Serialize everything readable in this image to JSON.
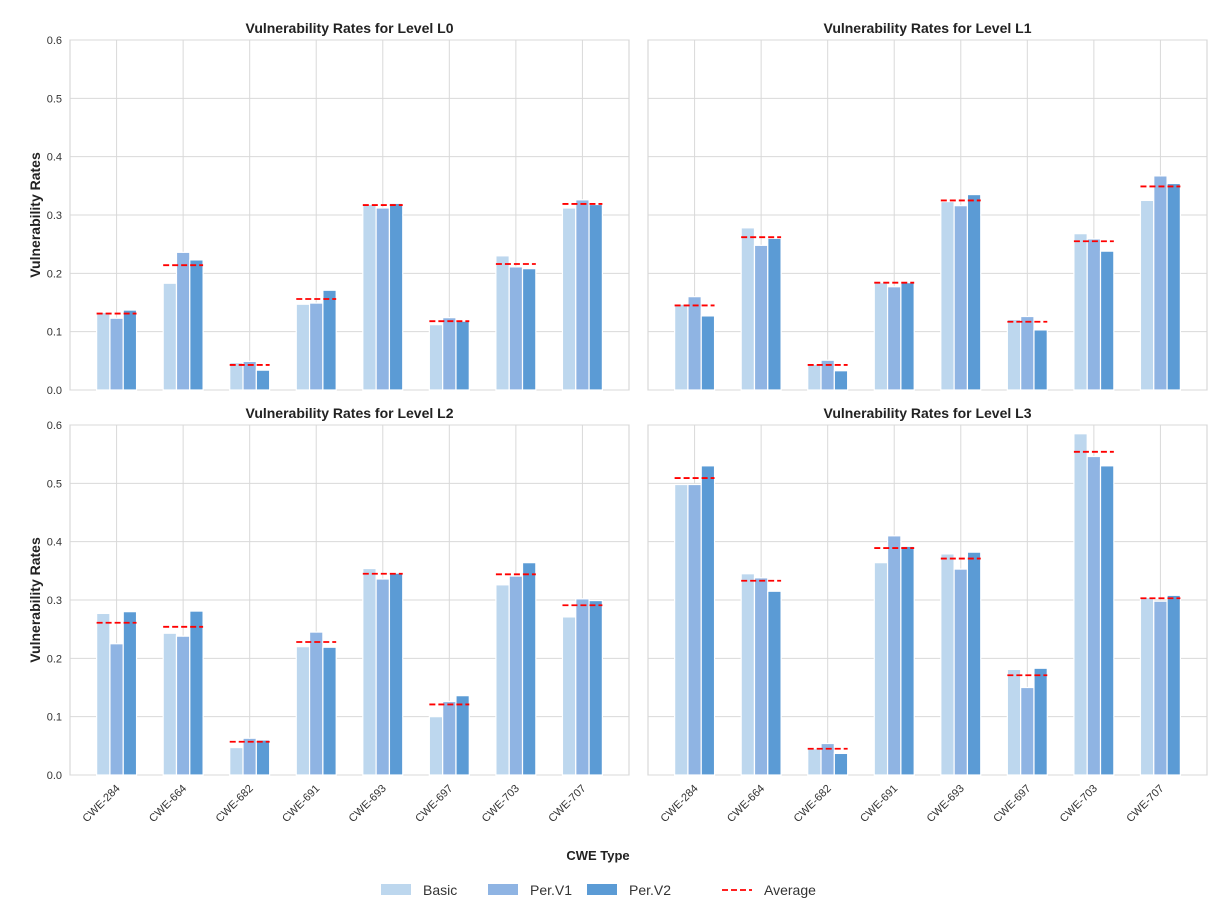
{
  "chart_data": {
    "type": "bar",
    "xlabel": "CWE Type",
    "ylabel": "Vulnerability Rates",
    "ylim": [
      0,
      0.6
    ],
    "yticks": [
      "0.0",
      "0.1",
      "0.2",
      "0.3",
      "0.4",
      "0.5",
      "0.6"
    ],
    "grid": true,
    "legend_position": "bottom-center",
    "categories": [
      "CWE-284",
      "CWE-664",
      "CWE-682",
      "CWE-691",
      "CWE-693",
      "CWE-697",
      "CWE-703",
      "CWE-707"
    ],
    "legend": [
      "Basic",
      "Per.V1",
      "Per.V2",
      "Average"
    ],
    "colors": {
      "Basic": "#bdd7ee",
      "Per.V1": "#8fb4e3",
      "Per.V2": "#5b9bd5",
      "Average": "#ff0000",
      "grid": "#d9d9d9"
    },
    "panels": [
      {
        "title": "Vulnerability Rates for Level L0",
        "series": [
          {
            "name": "Basic",
            "values": [
              0.133,
              0.183,
              0.047,
              0.147,
              0.318,
              0.112,
              0.23,
              0.312
            ]
          },
          {
            "name": "Per.V1",
            "values": [
              0.123,
              0.236,
              0.049,
              0.149,
              0.312,
              0.124,
              0.211,
              0.326
            ]
          },
          {
            "name": "Per.V2",
            "values": [
              0.137,
              0.223,
              0.034,
              0.171,
              0.32,
              0.118,
              0.208,
              0.318
            ]
          }
        ],
        "average": [
          0.131,
          0.214,
          0.043,
          0.156,
          0.317,
          0.118,
          0.216,
          0.319
        ]
      },
      {
        "title": "Vulnerability Rates for Level L1",
        "series": [
          {
            "name": "Basic",
            "values": [
              0.147,
              0.278,
              0.044,
              0.184,
              0.323,
              0.121,
              0.268,
              0.325
            ]
          },
          {
            "name": "Per.V1",
            "values": [
              0.16,
              0.248,
              0.051,
              0.177,
              0.316,
              0.126,
              0.259,
              0.367
            ]
          },
          {
            "name": "Per.V2",
            "values": [
              0.127,
              0.26,
              0.033,
              0.184,
              0.335,
              0.103,
              0.238,
              0.354
            ]
          }
        ],
        "average": [
          0.145,
          0.262,
          0.043,
          0.184,
          0.325,
          0.117,
          0.255,
          0.349
        ]
      },
      {
        "title": "Vulnerability Rates for Level L2",
        "series": [
          {
            "name": "Basic",
            "values": [
              0.277,
              0.243,
              0.047,
              0.22,
              0.354,
              0.1,
              0.326,
              0.271
            ]
          },
          {
            "name": "Per.V1",
            "values": [
              0.225,
              0.238,
              0.063,
              0.245,
              0.336,
              0.126,
              0.341,
              0.302
            ]
          },
          {
            "name": "Per.V2",
            "values": [
              0.28,
              0.281,
              0.06,
              0.219,
              0.346,
              0.136,
              0.364,
              0.299
            ]
          }
        ],
        "average": [
          0.261,
          0.254,
          0.057,
          0.228,
          0.345,
          0.121,
          0.344,
          0.291
        ]
      },
      {
        "title": "Vulnerability Rates for Level L3",
        "series": [
          {
            "name": "Basic",
            "values": [
              0.498,
              0.345,
              0.045,
              0.364,
              0.379,
              0.181,
              0.585,
              0.304
            ]
          },
          {
            "name": "Per.V1",
            "values": [
              0.498,
              0.338,
              0.054,
              0.41,
              0.353,
              0.15,
              0.546,
              0.298
            ]
          },
          {
            "name": "Per.V2",
            "values": [
              0.53,
              0.315,
              0.037,
              0.392,
              0.382,
              0.183,
              0.53,
              0.308
            ]
          }
        ],
        "average": [
          0.509,
          0.333,
          0.045,
          0.389,
          0.371,
          0.171,
          0.554,
          0.303
        ]
      }
    ]
  }
}
